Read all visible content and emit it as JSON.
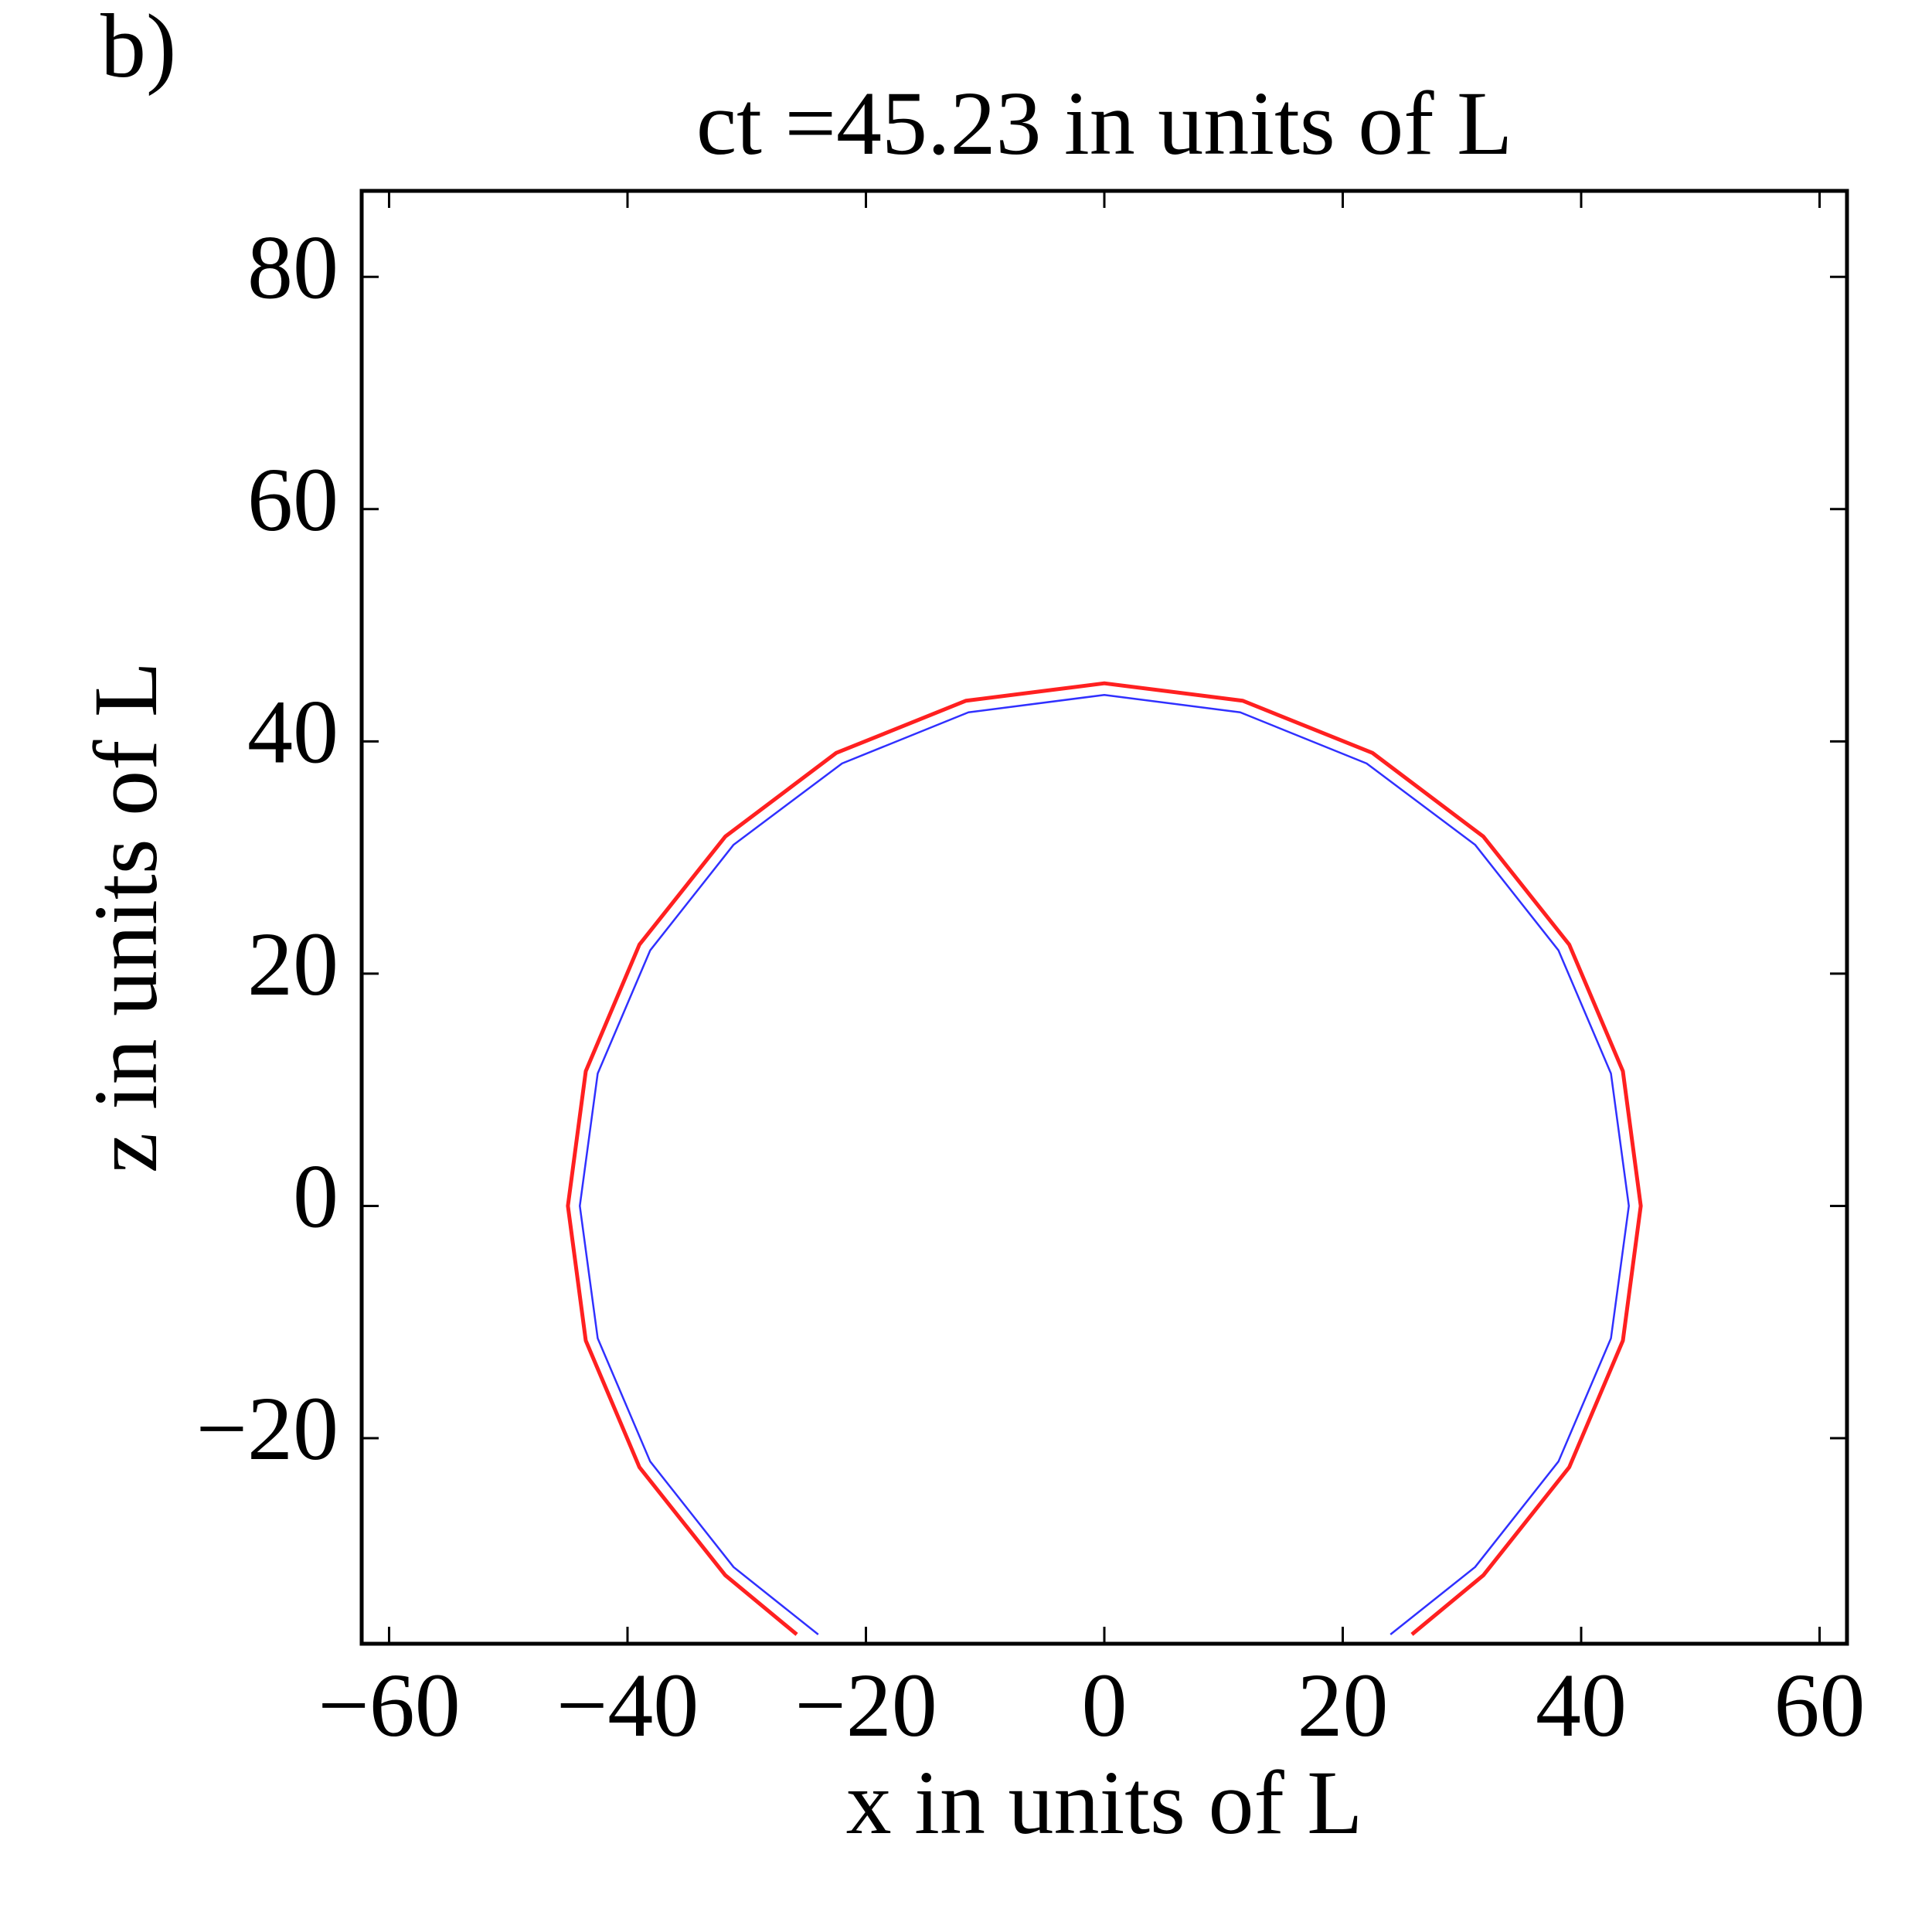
{
  "chart_data": {
    "type": "line",
    "panel_label": "b)",
    "title": "ct =45.23 in units of L",
    "x_label": "x in units of L",
    "y_label": "z in units of L",
    "xlim": [
      -62.3,
      62.3
    ],
    "ylim": [
      -37.7,
      87.4
    ],
    "xticks": [
      {
        "value": -60,
        "label": "−60"
      },
      {
        "value": -40,
        "label": "−40"
      },
      {
        "value": -20,
        "label": "−20"
      },
      0,
      20,
      40,
      60
    ],
    "yticks": [
      {
        "value": -20,
        "label": "−20"
      },
      0,
      20,
      40,
      60,
      80
    ],
    "grid": false,
    "series": [
      {
        "color": "#ff2020",
        "x": [
          25.8,
          31.8,
          39.0,
          43.5,
          45,
          43.5,
          39.0,
          31.8,
          22.5,
          11.6,
          0,
          -11.6,
          -22.5,
          -31.8,
          -39.0,
          -43.5,
          -45,
          -43.5,
          -39.0,
          -31.8,
          -25.8
        ],
        "values": [
          -36.9,
          -31.8,
          -22.5,
          -11.6,
          0,
          11.6,
          22.5,
          31.8,
          39.0,
          43.5,
          45,
          43.5,
          39.0,
          31.8,
          22.5,
          11.6,
          0,
          -11.6,
          -22.5,
          -31.8,
          -36.9
        ]
      },
      {
        "color": "#3030ff",
        "x": [
          24.0,
          31.1,
          38.1,
          42.5,
          44,
          42.5,
          38.1,
          31.1,
          22.0,
          11.4,
          0,
          -11.4,
          -22.0,
          -31.1,
          -38.1,
          -42.5,
          -44,
          -42.5,
          -38.1,
          -31.1,
          -24.0
        ],
        "values": [
          -36.9,
          -31.1,
          -22.0,
          -11.4,
          0,
          11.4,
          22.0,
          31.1,
          38.1,
          42.5,
          44,
          42.5,
          38.1,
          31.1,
          22.0,
          11.4,
          0,
          -11.4,
          -22.0,
          -31.1,
          -36.9
        ]
      }
    ]
  }
}
